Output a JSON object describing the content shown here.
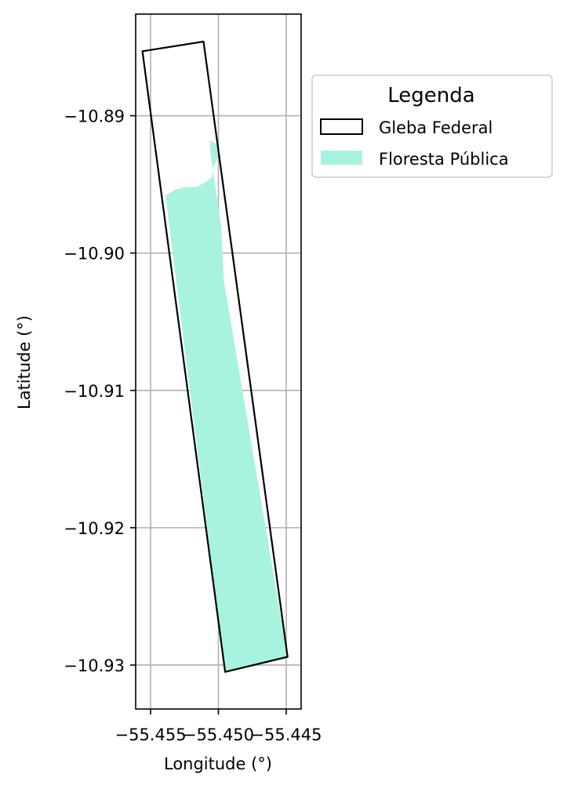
{
  "map": {
    "xlabel": "Longitude (°)",
    "ylabel": "Latitude (°)",
    "xlim": [
      -55.4561,
      -55.4439
    ],
    "ylim": [
      -10.9332,
      -10.8826
    ],
    "x_ticks": [
      {
        "value": -55.455,
        "label": "−55.455"
      },
      {
        "value": -55.45,
        "label": "−55.450"
      },
      {
        "value": -55.445,
        "label": "−55.445"
      }
    ],
    "y_ticks": [
      {
        "value": -10.89,
        "label": "−10.89"
      },
      {
        "value": -10.9,
        "label": "−10.90"
      },
      {
        "value": -10.91,
        "label": "−10.91"
      },
      {
        "value": -10.92,
        "label": "−10.92"
      },
      {
        "value": -10.93,
        "label": "−10.93"
      }
    ],
    "grid": true,
    "legend": {
      "title": "Legenda",
      "position": "outside-right",
      "entries": [
        {
          "label": "Gleba Federal",
          "style": "outline",
          "edge_color": "#000000"
        },
        {
          "label": "Floresta Pública",
          "style": "fill",
          "fill_color": "#a8f2e0"
        }
      ]
    },
    "layers": [
      {
        "name": "Gleba Federal",
        "style": "outline",
        "edge_color": "#000000",
        "coordinates": [
          [
            -55.4556,
            -10.8853
          ],
          [
            -55.4511,
            -10.8846
          ],
          [
            -55.4449,
            -10.9294
          ],
          [
            -55.4495,
            -10.9305
          ],
          [
            -55.4556,
            -10.8853
          ]
        ]
      },
      {
        "name": "Floresta Pública",
        "style": "fill",
        "fill_color": "#a8f2e0",
        "coordinates": [
          [
            -55.4539,
            -10.8958
          ],
          [
            -55.4532,
            -10.8954
          ],
          [
            -55.4525,
            -10.8952
          ],
          [
            -55.4516,
            -10.8952
          ],
          [
            -55.4509,
            -10.8948
          ],
          [
            -55.4505,
            -10.8945
          ],
          [
            -55.4504,
            -10.8938
          ],
          [
            -55.4501,
            -10.8932
          ],
          [
            -55.45,
            -10.8925
          ],
          [
            -55.4502,
            -10.892
          ],
          [
            -55.4506,
            -10.8918
          ],
          [
            -55.4506,
            -10.8927
          ],
          [
            -55.4498,
            -10.898
          ],
          [
            -55.4496,
            -10.902
          ],
          [
            -55.4449,
            -10.9294
          ],
          [
            -55.4495,
            -10.9305
          ],
          [
            -55.4539,
            -10.8958
          ]
        ]
      }
    ]
  }
}
